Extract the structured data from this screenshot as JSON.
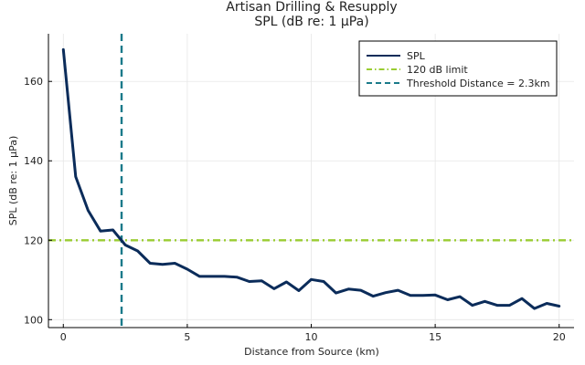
{
  "chart_data": {
    "type": "line",
    "title": "Artisan Drilling & Resupply",
    "subtitle": "SPL (dB re: 1 μPa)",
    "xlabel": "Distance from Source (km)",
    "ylabel": "SPL (dB re: 1 μPa)",
    "xlim": [
      -0.6,
      20.6
    ],
    "ylim": [
      98,
      172
    ],
    "xticks": [
      0,
      5,
      10,
      15,
      20
    ],
    "yticks": [
      100,
      120,
      140,
      160
    ],
    "grid": true,
    "legend_position": "top-right",
    "series": [
      {
        "name": "SPL",
        "color": "#0b2c5a",
        "x": [
          0,
          0.5,
          1,
          1.5,
          2,
          2.5,
          3,
          3.5,
          4,
          4.5,
          5,
          5.5,
          6,
          6.5,
          7,
          7.5,
          8,
          8.5,
          9,
          9.5,
          10,
          10.5,
          11,
          11.5,
          12,
          12.5,
          13,
          13.5,
          14,
          14.5,
          15,
          15.5,
          16,
          16.5,
          17,
          17.5,
          18,
          18.5,
          19,
          19.5,
          20
        ],
        "y": [
          168,
          136,
          127.5,
          122.3,
          122.6,
          118.8,
          117.3,
          114.2,
          113.9,
          114.2,
          112.7,
          110.9,
          110.9,
          110.9,
          110.7,
          109.6,
          109.8,
          107.8,
          109.5,
          107.3,
          110.1,
          109.6,
          106.7,
          107.7,
          107.4,
          105.9,
          106.8,
          107.4,
          106.1,
          106.1,
          106.2,
          105.0,
          105.8,
          103.6,
          104.6,
          103.6,
          103.6,
          105.3,
          102.8,
          104.1,
          103.4
        ]
      }
    ],
    "reference_lines": [
      {
        "name": "120 dB limit",
        "orientation": "horizontal",
        "value": 120,
        "color": "#9acd32",
        "style": "dashdot"
      },
      {
        "name": "Threshold Distance = 2.3km",
        "orientation": "vertical",
        "value": 2.35,
        "color": "#1a7a8a",
        "style": "dashed"
      }
    ]
  }
}
